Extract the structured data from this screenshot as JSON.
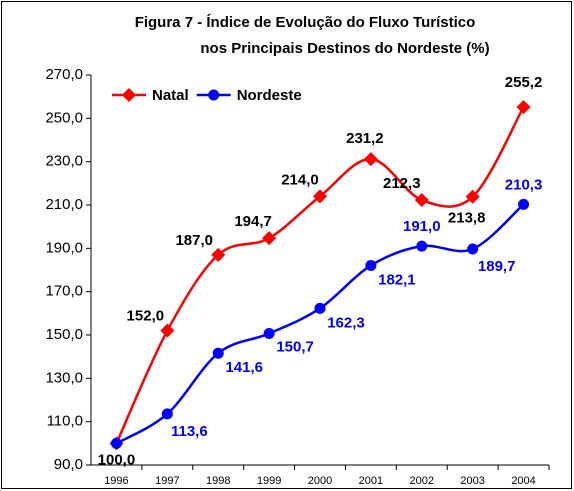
{
  "chart_data": {
    "type": "line",
    "title": [
      "Figura 7 - Índice de Evolução do Fluxo Turístico",
      "nos Principais Destinos do Nordeste (%)"
    ],
    "categories": [
      "1996",
      "1997",
      "1998",
      "1999",
      "2000",
      "2001",
      "2002",
      "2003",
      "2004"
    ],
    "series": [
      {
        "name": "Natal",
        "color": "#ff0000",
        "marker": "diamond",
        "values": [
          100.0,
          152.0,
          187.0,
          194.7,
          214.0,
          231.2,
          212.3,
          213.8,
          255.2
        ],
        "value_labels": [
          "100,0",
          "152,0",
          "187,0",
          "194,7",
          "214,0",
          "231,2",
          "212,3",
          "213,8",
          "255,2"
        ]
      },
      {
        "name": "Nordeste",
        "color": "#0000ff",
        "marker": "circle",
        "values": [
          100.0,
          113.6,
          141.6,
          150.7,
          162.3,
          182.1,
          191.0,
          189.7,
          210.3
        ],
        "value_labels": [
          null,
          "113,6",
          "141,6",
          "150,7",
          "162,3",
          "182,1",
          "191,0",
          "189,7",
          "210,3"
        ]
      }
    ],
    "ylim": [
      90,
      270
    ],
    "yticks": [
      {
        "value": 90,
        "label": "90,0"
      },
      {
        "value": 110,
        "label": "110,0"
      },
      {
        "value": 130,
        "label": "130,0"
      },
      {
        "value": 150,
        "label": "150,0"
      },
      {
        "value": 170,
        "label": "170,0"
      },
      {
        "value": 190,
        "label": "190,0"
      },
      {
        "value": 210,
        "label": "210,0"
      },
      {
        "value": 230,
        "label": "230,0"
      },
      {
        "value": 250,
        "label": "250,0"
      },
      {
        "value": 270,
        "label": "270,0"
      }
    ],
    "legend": "top-left",
    "grid": false
  }
}
